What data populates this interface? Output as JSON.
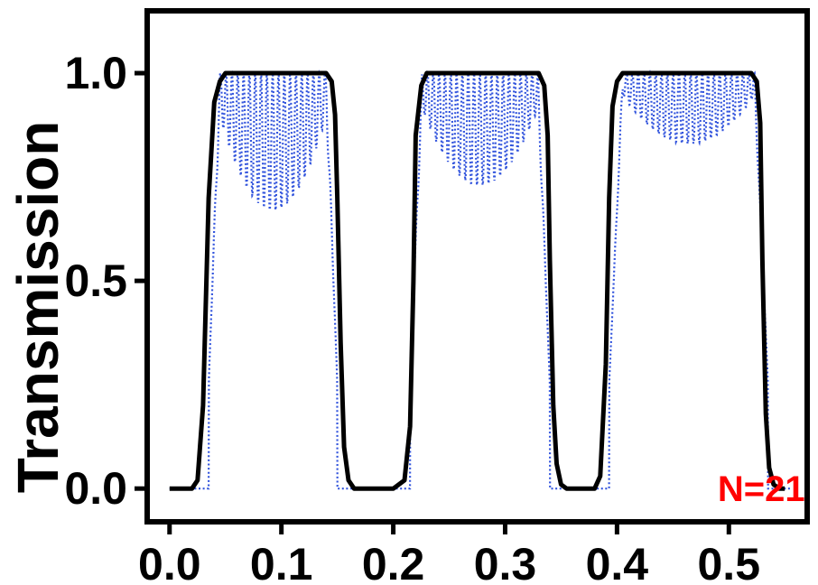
{
  "chart_data": {
    "type": "line",
    "title": "",
    "xlabel": "",
    "ylabel": "Transmission",
    "xlim": [
      -0.02,
      0.57
    ],
    "ylim": [
      -0.08,
      1.15
    ],
    "x_ticks": [
      0.0,
      0.1,
      0.2,
      0.3,
      0.4,
      0.5
    ],
    "x_tick_labels": [
      "0.0",
      "0.1",
      "0.2",
      "0.3",
      "0.4",
      "0.5"
    ],
    "y_ticks": [
      0.0,
      0.5,
      1.0
    ],
    "y_tick_labels": [
      "0.0",
      "0.5",
      "1.0"
    ],
    "grid": false,
    "annotation": {
      "text": "N=21",
      "x": 0.49,
      "y": 0.0,
      "color": "#ff0000"
    },
    "colors": {
      "solid": "#000000",
      "dotted": "#3355dd",
      "annotation": "#ff0000"
    },
    "series": [
      {
        "style": "solid",
        "color": "#000000",
        "x": [
          0.0,
          0.02,
          0.025,
          0.03,
          0.035,
          0.04,
          0.045,
          0.05,
          0.06,
          0.14,
          0.145,
          0.148,
          0.15,
          0.153,
          0.156,
          0.16,
          0.165,
          0.17,
          0.2,
          0.21,
          0.215,
          0.218,
          0.22,
          0.225,
          0.23,
          0.24,
          0.33,
          0.335,
          0.338,
          0.34,
          0.343,
          0.346,
          0.35,
          0.355,
          0.36,
          0.38,
          0.385,
          0.39,
          0.393,
          0.396,
          0.4,
          0.405,
          0.41,
          0.52,
          0.525,
          0.528,
          0.53,
          0.533,
          0.536,
          0.54,
          0.545,
          0.55
        ],
        "y": [
          0.0,
          0.0,
          0.02,
          0.2,
          0.7,
          0.93,
          0.98,
          1.0,
          1.0,
          1.0,
          0.98,
          0.9,
          0.7,
          0.35,
          0.1,
          0.02,
          0.0,
          0.0,
          0.0,
          0.02,
          0.15,
          0.5,
          0.85,
          0.97,
          1.0,
          1.0,
          1.0,
          0.97,
          0.85,
          0.55,
          0.2,
          0.06,
          0.01,
          0.0,
          0.0,
          0.0,
          0.03,
          0.3,
          0.7,
          0.92,
          0.98,
          1.0,
          1.0,
          1.0,
          0.98,
          0.88,
          0.55,
          0.18,
          0.05,
          0.01,
          0.0,
          0.0
        ]
      },
      {
        "style": "dotted",
        "color": "#3355dd",
        "bands": [
          {
            "x_start": 0.035,
            "x_end": 0.15,
            "min_at_center": 0.67
          },
          {
            "x_start": 0.215,
            "x_end": 0.34,
            "min_at_center": 0.73
          },
          {
            "x_start": 0.393,
            "x_end": 0.535,
            "min_at_center": 0.83
          }
        ],
        "baseline": 0.0,
        "x_range": [
          0.0,
          0.555
        ]
      }
    ]
  }
}
